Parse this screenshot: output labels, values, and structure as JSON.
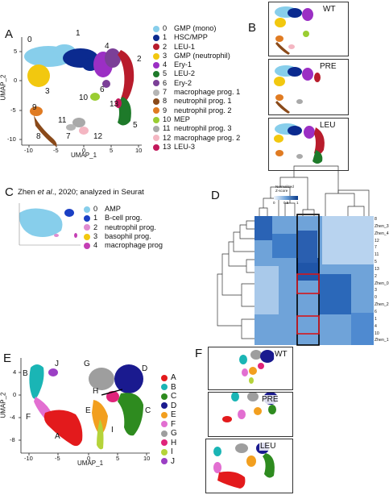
{
  "panels": {
    "A": {
      "letter": "A",
      "xlabel": "UMAP_1",
      "ylabel": "UMAP_2",
      "xticks": [
        "-10",
        "-5",
        "0",
        "5",
        "10"
      ],
      "yticks": [
        "5",
        "0",
        "-5",
        "-10"
      ],
      "cluster_labels": [
        "0",
        "1",
        "2",
        "3",
        "4",
        "5",
        "6",
        "7",
        "8",
        "9",
        "10",
        "11",
        "12",
        "13"
      ],
      "legend": [
        {
          "num": "0",
          "label": "GMP (mono)",
          "color": "#87ceeb"
        },
        {
          "num": "1",
          "label": "HSC/MPP",
          "color": "#0b2a8f"
        },
        {
          "num": "2",
          "label": "LEU-1",
          "color": "#b81c2c"
        },
        {
          "num": "3",
          "label": "GMP (neutrophil)",
          "color": "#f2c80f"
        },
        {
          "num": "4",
          "label": "Ery-1",
          "color": "#9b2fc4"
        },
        {
          "num": "5",
          "label": "LEU-2",
          "color": "#1e7a2a"
        },
        {
          "num": "6",
          "label": "Ery-2",
          "color": "#7b3f97"
        },
        {
          "num": "7",
          "label": "macrophage prog. 1",
          "color": "#b5b5b5"
        },
        {
          "num": "8",
          "label": "neutrophil prog. 1",
          "color": "#8a4a1a"
        },
        {
          "num": "9",
          "label": "neutrophil prog. 2",
          "color": "#e07b22"
        },
        {
          "num": "10",
          "label": "MEP",
          "color": "#9acd32"
        },
        {
          "num": "11",
          "label": "neutrophil prog. 3",
          "color": "#a9a9a9"
        },
        {
          "num": "12",
          "label": "macrophage prog. 2",
          "color": "#f4b6c2"
        },
        {
          "num": "13",
          "label": "LEU-3",
          "color": "#c2185b"
        }
      ]
    },
    "B": {
      "letter": "B",
      "boxes": [
        "WT",
        "PRE",
        "LEU"
      ]
    },
    "C": {
      "letter": "C",
      "caption_pre": "Zhen ",
      "caption_em": "et al",
      "caption_post": "., 2020; analyzed in Seurat",
      "legend": [
        {
          "num": "0",
          "label": "AMP",
          "color": "#87ceeb"
        },
        {
          "num": "1",
          "label": "B-cell prog.",
          "color": "#1a3fc4"
        },
        {
          "num": "2",
          "label": "neutrophil prog.",
          "color": "#e08bd0"
        },
        {
          "num": "3",
          "label": "basophil prog.",
          "color": "#f2c80f"
        },
        {
          "num": "4",
          "label": "macrophage prog",
          "color": "#c43fb4"
        }
      ]
    },
    "D": {
      "letter": "D",
      "colorbar_title": "Normalized\nZ-score",
      "colorbar_ticks": [
        "0",
        "0.5",
        "1"
      ],
      "row_labels": [
        "8",
        "Zhen_3",
        "Zhen_4",
        "12",
        "7",
        "11",
        "5",
        "13",
        "2",
        "Zhen_0",
        "3",
        "0",
        "Zhen_2",
        "6",
        "1",
        "4",
        "10",
        "Zhen_1"
      ]
    },
    "E": {
      "letter": "E",
      "xlabel": "UMAP_1",
      "ylabel": "UMAP_2",
      "xticks": [
        "-10",
        "-5",
        "0",
        "5",
        "10"
      ],
      "yticks": [
        "4",
        "0",
        "-4",
        "-8"
      ],
      "cluster_labels": [
        "J",
        "B",
        "G",
        "D",
        "H",
        "E",
        "C",
        "F",
        "A",
        "I"
      ],
      "legend": [
        {
          "label": "A",
          "color": "#e31a1c"
        },
        {
          "label": "B",
          "color": "#1ab5b5"
        },
        {
          "label": "C",
          "color": "#2e8b1f"
        },
        {
          "label": "D",
          "color": "#1a1a8f"
        },
        {
          "label": "E",
          "color": "#f29f1f"
        },
        {
          "label": "F",
          "color": "#e26fd1"
        },
        {
          "label": "G",
          "color": "#9e9e9e"
        },
        {
          "label": "H",
          "color": "#e0247a"
        },
        {
          "label": "I",
          "color": "#b5d33a"
        },
        {
          "label": "J",
          "color": "#9b3fc4"
        }
      ]
    },
    "F": {
      "letter": "F",
      "boxes": [
        "WT",
        "PRE",
        "LEU"
      ]
    }
  }
}
